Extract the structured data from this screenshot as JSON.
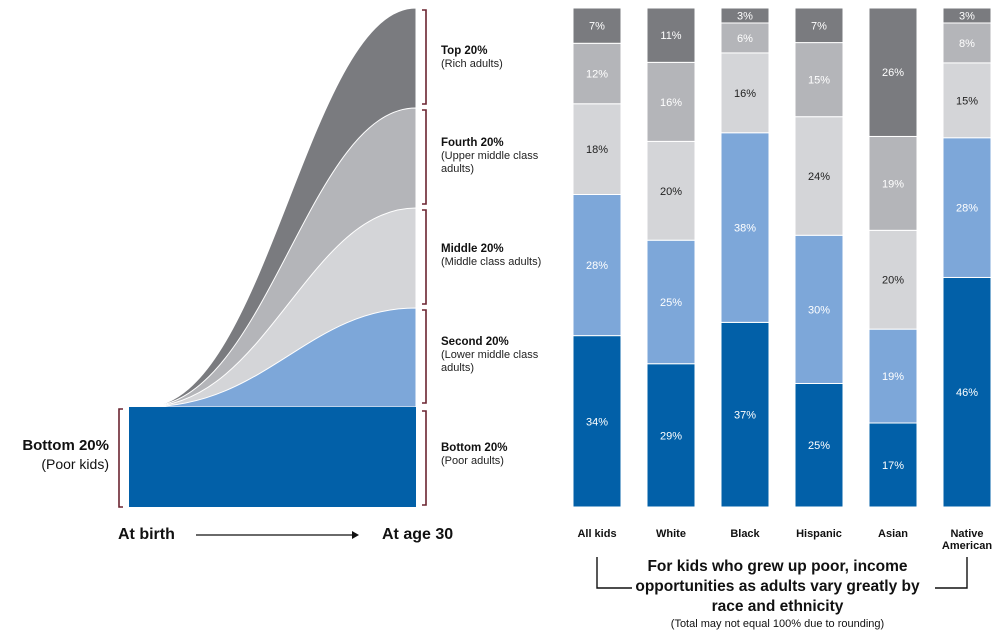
{
  "colors": {
    "top": "#7a7b7f",
    "fourth": "#b4b5b9",
    "middle": "#d4d5d8",
    "second": "#7da7d9",
    "bottom": "#0260a8",
    "bracket": "#6b2430",
    "label_light": "#ffffff",
    "label_dark": "#222222"
  },
  "flow": {
    "start_label": "Bottom 20%",
    "start_sub": "(Poor kids)",
    "x_start": "At birth",
    "x_end": "At age 30",
    "quintiles": [
      {
        "key": "top",
        "title": "Top 20%",
        "lines": [
          "(Rich adults)"
        ]
      },
      {
        "key": "fourth",
        "title": "Fourth 20%",
        "lines": [
          "(Upper middle class",
          "adults)"
        ]
      },
      {
        "key": "middle",
        "title": "Middle 20%",
        "lines": [
          "(Middle class adults)"
        ]
      },
      {
        "key": "second",
        "title": "Second 20%",
        "lines": [
          "(Lower middle class",
          "adults)"
        ]
      },
      {
        "key": "bottom",
        "title": "Bottom 20%",
        "lines": [
          "(Poor adults)"
        ]
      }
    ]
  },
  "chart_data": {
    "type": "bar",
    "stacked": true,
    "categories": [
      "All kids",
      "White",
      "Black",
      "Hispanic",
      "Asian",
      "Native American"
    ],
    "category_lines": [
      [
        "All kids"
      ],
      [
        "White"
      ],
      [
        "Black"
      ],
      [
        "Hispanic"
      ],
      [
        "Asian"
      ],
      [
        "Native",
        "American"
      ]
    ],
    "series": [
      {
        "key": "bottom",
        "values": [
          34,
          29,
          37,
          25,
          17,
          46
        ]
      },
      {
        "key": "second",
        "values": [
          28,
          25,
          38,
          30,
          19,
          28
        ]
      },
      {
        "key": "middle",
        "values": [
          18,
          20,
          16,
          24,
          20,
          15
        ]
      },
      {
        "key": "fourth",
        "values": [
          12,
          16,
          6,
          15,
          19,
          8
        ]
      },
      {
        "key": "top",
        "values": [
          7,
          11,
          3,
          7,
          26,
          3
        ]
      }
    ],
    "value_suffix": "%",
    "caption_lines": [
      "For kids who grew up poor, income",
      "opportunities as adults vary greatly by",
      "race and ethnicity"
    ],
    "note": "(Total may not equal 100% due to rounding)"
  }
}
